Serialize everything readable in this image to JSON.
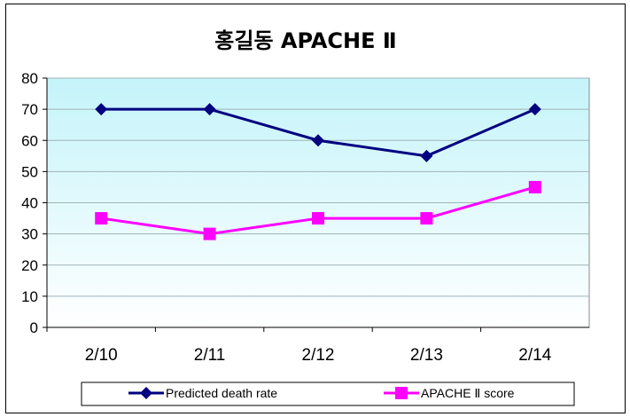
{
  "chart_data": {
    "type": "line",
    "title": "홍길동 APACHE Ⅱ",
    "categories": [
      "2/10",
      "2/11",
      "2/12",
      "2/13",
      "2/14"
    ],
    "series": [
      {
        "name": "Predicted death rate",
        "values": [
          70,
          70,
          60,
          55,
          70
        ],
        "color": "#000080",
        "marker": "diamond"
      },
      {
        "name": "APACHE Ⅱ score",
        "values": [
          35,
          30,
          35,
          35,
          45
        ],
        "color": "#ff00ff",
        "marker": "square"
      }
    ],
    "ylim": [
      0,
      80
    ],
    "yticks": [
      0,
      10,
      20,
      30,
      40,
      50,
      60,
      70,
      80
    ],
    "grid": true,
    "legend": "bottom",
    "background_gradient": [
      "#c4f4fa",
      "#ffffff"
    ]
  }
}
